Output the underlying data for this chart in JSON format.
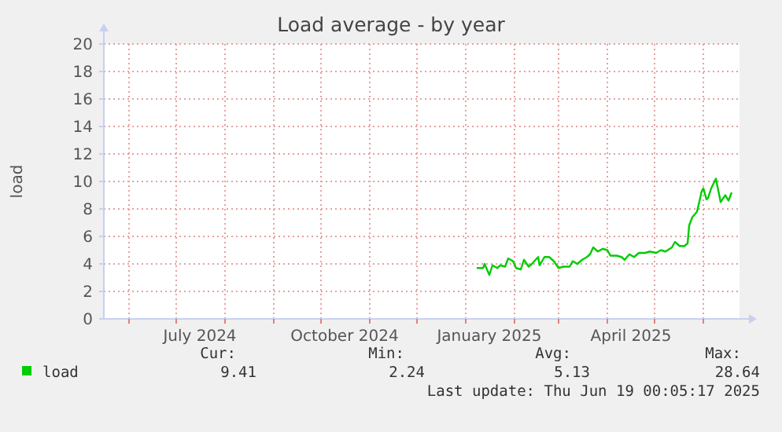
{
  "chart_data": {
    "type": "line",
    "title": "Load average - by year",
    "ylabel": "load",
    "x": [
      "2025-01-08",
      "2025-01-12",
      "2025-01-13",
      "2025-01-16",
      "2025-01-18",
      "2025-01-21",
      "2025-01-23",
      "2025-01-26",
      "2025-01-28",
      "2025-01-31",
      "2025-02-02",
      "2025-02-05",
      "2025-02-07",
      "2025-02-10",
      "2025-02-12",
      "2025-02-16",
      "2025-02-17",
      "2025-02-20",
      "2025-02-23",
      "2025-02-26",
      "2025-03-01",
      "2025-03-04",
      "2025-03-08",
      "2025-03-10",
      "2025-03-13",
      "2025-03-16",
      "2025-03-19",
      "2025-03-21",
      "2025-03-23",
      "2025-03-26",
      "2025-03-29",
      "2025-04-01",
      "2025-04-03",
      "2025-04-07",
      "2025-04-10",
      "2025-04-12",
      "2025-04-15",
      "2025-04-18",
      "2025-04-21",
      "2025-04-25",
      "2025-04-28",
      "2025-05-02",
      "2025-05-05",
      "2025-05-08",
      "2025-05-12",
      "2025-05-14",
      "2025-05-17",
      "2025-05-20",
      "2025-05-22",
      "2025-05-23",
      "2025-05-25",
      "2025-05-28",
      "2025-05-29",
      "2025-05-31",
      "2025-06-01",
      "2025-06-03",
      "2025-06-04",
      "2025-06-06",
      "2025-06-09",
      "2025-06-12",
      "2025-06-15",
      "2025-06-17",
      "2025-06-19"
    ],
    "series": [
      {
        "name": "load",
        "color": "#00cc00",
        "values": [
          3.7,
          3.7,
          4.0,
          3.2,
          3.9,
          3.7,
          3.9,
          3.8,
          4.4,
          4.2,
          3.7,
          3.6,
          4.3,
          3.8,
          4.0,
          4.5,
          3.9,
          4.5,
          4.5,
          4.2,
          3.7,
          3.8,
          3.8,
          4.2,
          4.0,
          4.3,
          4.5,
          4.7,
          5.2,
          4.9,
          5.1,
          5.0,
          4.6,
          4.6,
          4.5,
          4.3,
          4.7,
          4.5,
          4.8,
          4.8,
          4.9,
          4.8,
          5.0,
          4.9,
          5.2,
          5.6,
          5.3,
          5.3,
          5.5,
          6.8,
          7.4,
          7.8,
          8.3,
          9.3,
          9.5,
          8.7,
          8.8,
          9.5,
          10.2,
          8.5,
          9.0,
          8.6,
          9.2
        ]
      }
    ],
    "xlim": [
      "2024-05-16",
      "2025-06-24"
    ],
    "xticks": [
      {
        "value": "2024-06-01",
        "label": null
      },
      {
        "value": "2024-07-01",
        "label": null
      },
      {
        "value": "2024-07-16",
        "label": "July 2024"
      },
      {
        "value": "2024-08-01",
        "label": null
      },
      {
        "value": "2024-09-01",
        "label": null
      },
      {
        "value": "2024-10-01",
        "label": null
      },
      {
        "value": "2024-10-16",
        "label": "October 2024"
      },
      {
        "value": "2024-11-01",
        "label": null
      },
      {
        "value": "2024-12-01",
        "label": null
      },
      {
        "value": "2025-01-01",
        "label": null
      },
      {
        "value": "2025-01-16",
        "label": "January 2025"
      },
      {
        "value": "2025-02-01",
        "label": null
      },
      {
        "value": "2025-03-01",
        "label": null
      },
      {
        "value": "2025-04-01",
        "label": null
      },
      {
        "value": "2025-04-16",
        "label": "April 2025"
      },
      {
        "value": "2025-05-01",
        "label": null
      },
      {
        "value": "2025-06-01",
        "label": null
      }
    ],
    "ylim": [
      0,
      20
    ],
    "yticks": [
      0,
      2,
      4,
      6,
      8,
      10,
      12,
      14,
      16,
      18,
      20
    ],
    "grid": true,
    "legend": "bottom left",
    "marker": "none",
    "line_style": "solid",
    "annotations": [
      "Cur:",
      "Min:",
      "Avg:",
      "Max:",
      "9.41",
      "2.24",
      "5.13",
      "28.64",
      "Last update: Thu Jun 19 00:05:17 2025"
    ]
  }
}
